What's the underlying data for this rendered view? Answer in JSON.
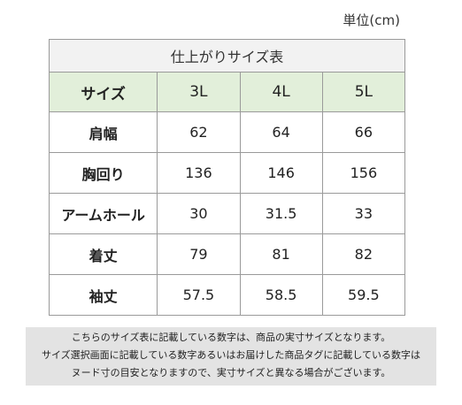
{
  "unit_label": "単位(cm)",
  "table": {
    "caption": "仕上がりサイズ表",
    "header": {
      "label": "サイズ",
      "sizes": [
        "3L",
        "4L",
        "5L"
      ]
    },
    "rows": [
      {
        "label": "肩幅",
        "values": [
          "62",
          "64",
          "66"
        ]
      },
      {
        "label": "胸回り",
        "values": [
          "136",
          "146",
          "156"
        ]
      },
      {
        "label": "アームホール",
        "values": [
          "30",
          "31.5",
          "33"
        ]
      },
      {
        "label": "着丈",
        "values": [
          "79",
          "81",
          "82"
        ]
      },
      {
        "label": "袖丈",
        "values": [
          "57.5",
          "58.5",
          "59.5"
        ]
      }
    ]
  },
  "note": {
    "lines": [
      "こちらのサイズ表に記載している数字は、商品の実寸サイズとなります。",
      "サイズ選択画面に記載している数字あるいはお届けした商品タグに記載している数字は",
      "ヌード寸の目安となりますので、実寸サイズと異なる場合がございます。"
    ]
  }
}
